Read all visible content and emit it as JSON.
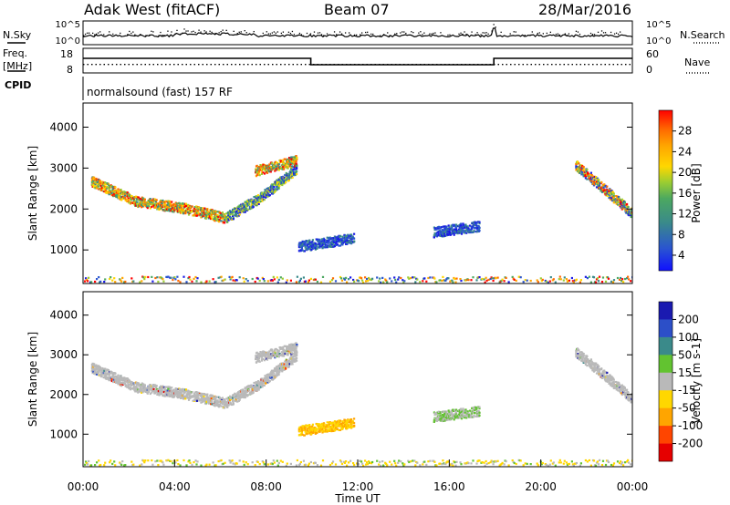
{
  "header": {
    "station": "Adak West (fitACF)",
    "beam": "Beam 07",
    "date": "28/Mar/2016",
    "control_program": "normalsound (fast) 157 RF"
  },
  "panel_labels": {
    "nsky": "N.Sky",
    "nsearch": "N.Search",
    "freq_line1": "Freq.",
    "freq_line2": "[MHz]",
    "nave": "Nave",
    "cpid": "CPID"
  },
  "time_axis": {
    "title": "Time UT",
    "ticks": [
      "00:00",
      "04:00",
      "08:00",
      "12:00",
      "16:00",
      "20:00",
      "00:00"
    ]
  },
  "chart_data": [
    {
      "type": "line",
      "name": "noise",
      "y_ticks_left": [
        "10^5",
        "10^0"
      ],
      "y_ticks_right": [
        "10^5",
        "10^0"
      ],
      "series": [
        {
          "name": "N.Sky",
          "style": "solid",
          "description_level": "about 10^0.5, slightly elevated 04:00–07:00"
        },
        {
          "name": "N.Search",
          "style": "dotted"
        }
      ]
    },
    {
      "type": "line",
      "name": "frequency",
      "x_unit": "hours UT",
      "y_ticks_left": [
        "18",
        "8"
      ],
      "y_ticks_right": [
        "60",
        "0"
      ],
      "freq_series": {
        "x": [
          0,
          9.95,
          9.95,
          17.95,
          17.95,
          24
        ],
        "y_mhz": [
          14.5,
          14.5,
          11.0,
          11.0,
          14.5,
          14.5
        ]
      },
      "nave_series": {
        "style": "dotted",
        "value": 20
      }
    },
    {
      "type": "heatmap",
      "name": "power",
      "x_range_hours": [
        0,
        24
      ],
      "ylabel": "Slant Range [km]",
      "y_ticks": [
        "4000",
        "3000",
        "2000",
        "1000"
      ],
      "ylim_km": [
        180,
        4590
      ],
      "colorbar_label": "Power [dB]",
      "colorbar_ticks": [
        "28",
        "24",
        "20",
        "16",
        "12",
        "8",
        "4"
      ],
      "colorscale": [
        "#1a1ae6",
        "#2a55d0",
        "#3a8a8a",
        "#4ca860",
        "#9acd32",
        "#ffd700",
        "#ffa500",
        "#ff6a00",
        "#ff0000"
      ],
      "features": [
        {
          "t0": 0.35,
          "t1": 6.2,
          "ymid": [
            2700,
            2200,
            2050,
            1800
          ],
          "power": "high"
        },
        {
          "t0": 6.2,
          "t1": 9.3,
          "ymid": [
            1800,
            2300,
            3000
          ],
          "power": "medium"
        },
        {
          "t0": 7.5,
          "t1": 9.3,
          "ymid": [
            2950,
            3200
          ],
          "power": "high"
        },
        {
          "t0": 9.4,
          "t1": 11.8,
          "ymid": [
            1100,
            1300
          ],
          "power": "low"
        },
        {
          "t0": 15.3,
          "t1": 17.3,
          "ymid": [
            1450,
            1600
          ],
          "power": "low"
        },
        {
          "t0": 21.5,
          "t1": 24.0,
          "ymid": [
            3100,
            1900
          ],
          "power": "mixed"
        },
        {
          "t0": 0,
          "t1": 24,
          "ymid": [
            300,
            300
          ],
          "power": "ground-scatter-noise"
        }
      ]
    },
    {
      "type": "heatmap",
      "name": "velocity",
      "x_range_hours": [
        0,
        24
      ],
      "ylabel": "Slant Range [km]",
      "y_ticks": [
        "4000",
        "3000",
        "2000",
        "1000"
      ],
      "ylim_km": [
        180,
        4590
      ],
      "colorbar_label": "Velocity [m s-1]",
      "colorbar_ticks": [
        "200",
        "100",
        "50",
        "15",
        "-15",
        "-50",
        "-100",
        "-200"
      ],
      "colorscale": [
        "#1a1ab0",
        "#2c4fc8",
        "#3a8a8a",
        "#62c330",
        "#b9b9b9",
        "#ffd700",
        "#ffa500",
        "#ff4500",
        "#e60000"
      ],
      "dominant_value": "gray (|v| < 15 m/s)"
    }
  ]
}
